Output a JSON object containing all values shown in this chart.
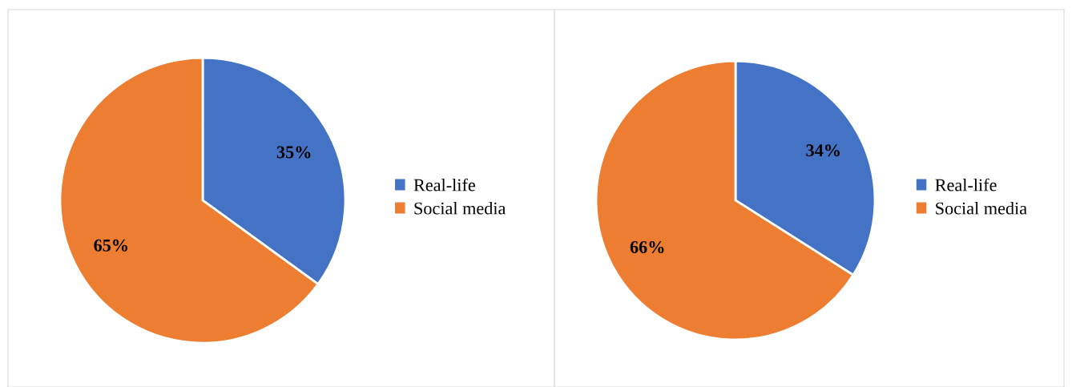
{
  "chart_data": [
    {
      "type": "pie",
      "categories": [
        "Real-life",
        "Social media"
      ],
      "values": [
        35,
        65
      ],
      "colors": [
        "#4472c4",
        "#ed7d31"
      ],
      "value_labels": [
        "35%",
        "65%"
      ],
      "legend": "right"
    },
    {
      "type": "pie",
      "categories": [
        "Real-life",
        "Social media"
      ],
      "values": [
        34,
        66
      ],
      "colors": [
        "#4472c4",
        "#ed7d31"
      ],
      "value_labels": [
        "34%",
        "66%"
      ],
      "legend": "right"
    }
  ]
}
